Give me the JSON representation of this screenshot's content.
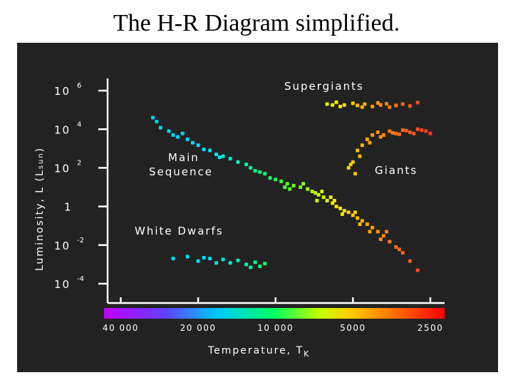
{
  "page": {
    "title": "The H-R Diagram simplified."
  },
  "colors": {
    "background": "#ffffff",
    "plot_background": "#222222",
    "axis": "#ffffff",
    "text": "#ffffff"
  },
  "chart_data": {
    "type": "scatter",
    "title": "",
    "xlabel": "Temperature, T",
    "xlabel_sub": "K",
    "ylabel": "Luminosity, L (L",
    "ylabel_sub": "sun",
    "ylabel_end": ")",
    "x_scale": "log-reversed",
    "y_scale": "log",
    "xlim": [
      45000,
      2200
    ],
    "ylim": [
      1e-05,
      10000000
    ],
    "grid": false,
    "x_ticks": [
      {
        "value": 40000,
        "label": "40 000"
      },
      {
        "value": 20000,
        "label": "20 000"
      },
      {
        "value": 10000,
        "label": "10 000"
      },
      {
        "value": 5000,
        "label": "5000"
      },
      {
        "value": 2500,
        "label": "2500"
      }
    ],
    "y_ticks": [
      {
        "value": 1000000,
        "base": "10",
        "exp": "6"
      },
      {
        "value": 10000,
        "base": "10",
        "exp": "4"
      },
      {
        "value": 100,
        "base": "10",
        "exp": "2"
      },
      {
        "value": 1,
        "base": "1",
        "exp": ""
      },
      {
        "value": 0.01,
        "base": "10",
        "exp": "-2"
      },
      {
        "value": 0.0001,
        "base": "10",
        "exp": "-4"
      }
    ],
    "annotations": {
      "supergiants": "Supergiants",
      "giants": "Giants",
      "main_sequence_1": "Main",
      "main_sequence_2": "Sequence",
      "white_dwarfs": "White Dwarfs"
    },
    "series": [
      {
        "name": "Supergiants",
        "points": [
          [
            6300,
            200000
          ],
          [
            5800,
            250000
          ],
          [
            5400,
            180000
          ],
          [
            5000,
            220000
          ],
          [
            4800,
            170000
          ],
          [
            4500,
            200000
          ],
          [
            4200,
            150000
          ],
          [
            3900,
            180000
          ],
          [
            3600,
            140000
          ],
          [
            3400,
            170000
          ],
          [
            3200,
            200000
          ],
          [
            3000,
            160000
          ],
          [
            2800,
            240000
          ],
          [
            5600,
            150000
          ],
          [
            4000,
            230000
          ],
          [
            3700,
            210000
          ],
          [
            6000,
            180000
          ],
          [
            4600,
            140000
          ]
        ]
      },
      {
        "name": "Giants",
        "points": [
          [
            5200,
            100
          ],
          [
            5000,
            200
          ],
          [
            4800,
            800
          ],
          [
            4600,
            1500
          ],
          [
            4400,
            3000
          ],
          [
            4200,
            5000
          ],
          [
            4000,
            7000
          ],
          [
            3800,
            5000
          ],
          [
            3600,
            8000
          ],
          [
            3400,
            6000
          ],
          [
            3200,
            9000
          ],
          [
            3000,
            7000
          ],
          [
            2800,
            10000
          ],
          [
            2600,
            8000
          ],
          [
            2500,
            6000
          ],
          [
            4900,
            50
          ],
          [
            5100,
            150
          ],
          [
            4700,
            400
          ],
          [
            4300,
            2000
          ],
          [
            3900,
            4000
          ],
          [
            3500,
            6500
          ],
          [
            3300,
            5500
          ],
          [
            3100,
            8500
          ],
          [
            2900,
            6000
          ],
          [
            2700,
            9000
          ]
        ]
      },
      {
        "name": "Main Sequence",
        "points": [
          [
            30000,
            40000
          ],
          [
            29000,
            25000
          ],
          [
            28000,
            12000
          ],
          [
            26000,
            8000
          ],
          [
            25000,
            5000
          ],
          [
            23000,
            6000
          ],
          [
            22000,
            3000
          ],
          [
            21000,
            2000
          ],
          [
            20000,
            1500
          ],
          [
            19000,
            900
          ],
          [
            18000,
            800
          ],
          [
            17000,
            500
          ],
          [
            16000,
            400
          ],
          [
            15000,
            300
          ],
          [
            14000,
            200
          ],
          [
            13000,
            150
          ],
          [
            12500,
            100
          ],
          [
            12000,
            70
          ],
          [
            11000,
            50
          ],
          [
            10500,
            30
          ],
          [
            10000,
            25
          ],
          [
            9500,
            20
          ],
          [
            9000,
            15
          ],
          [
            8500,
            12
          ],
          [
            8000,
            10
          ],
          [
            7500,
            8
          ],
          [
            7200,
            6
          ],
          [
            7000,
            5
          ],
          [
            6800,
            4
          ],
          [
            6500,
            3
          ],
          [
            6300,
            2
          ],
          [
            6000,
            1.5
          ],
          [
            5800,
            1
          ],
          [
            5600,
            0.8
          ],
          [
            5400,
            0.6
          ],
          [
            5200,
            0.5
          ],
          [
            5000,
            0.35
          ],
          [
            4800,
            0.25
          ],
          [
            4600,
            0.18
          ],
          [
            4400,
            0.12
          ],
          [
            4200,
            0.08
          ],
          [
            4000,
            0.05
          ],
          [
            3800,
            0.03
          ],
          [
            3600,
            0.015
          ],
          [
            3400,
            0.008
          ],
          [
            3200,
            0.004
          ],
          [
            3000,
            0.0015
          ],
          [
            2800,
            0.0005
          ],
          [
            24000,
            4000
          ],
          [
            16500,
            350
          ],
          [
            11500,
            60
          ],
          [
            9200,
            10
          ],
          [
            7800,
            15
          ],
          [
            6900,
            2
          ],
          [
            6100,
            3
          ],
          [
            5500,
            0.4
          ],
          [
            4900,
            0.5
          ],
          [
            4300,
            0.05
          ],
          [
            3700,
            0.05
          ],
          [
            8800,
            8
          ],
          [
            6600,
            6
          ],
          [
            5900,
            2
          ],
          [
            4700,
            0.12
          ],
          [
            3900,
            0.02
          ],
          [
            3300,
            0.006
          ]
        ]
      },
      {
        "name": "White Dwarfs",
        "points": [
          [
            25000,
            0.002
          ],
          [
            22000,
            0.0025
          ],
          [
            20000,
            0.0015
          ],
          [
            18000,
            0.002
          ],
          [
            16000,
            0.0018
          ],
          [
            15000,
            0.0012
          ],
          [
            14000,
            0.0016
          ],
          [
            13000,
            0.001
          ],
          [
            12000,
            0.0013
          ],
          [
            11500,
            0.0008
          ],
          [
            11000,
            0.0011
          ],
          [
            17000,
            0.0012
          ],
          [
            19000,
            0.0022
          ],
          [
            12500,
            0.0007
          ]
        ]
      }
    ]
  }
}
